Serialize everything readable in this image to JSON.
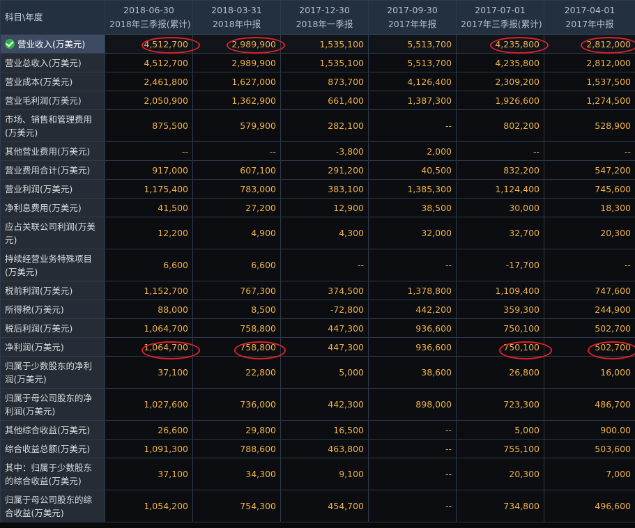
{
  "header": {
    "corner": "科目\\年度",
    "columns": [
      {
        "date": "2018-06-30",
        "report": "2018年三季报(累计)"
      },
      {
        "date": "2018-03-31",
        "report": "2018年中报"
      },
      {
        "date": "2017-12-30",
        "report": "2018年一季报"
      },
      {
        "date": "2017-09-30",
        "report": "2017年年报"
      },
      {
        "date": "2017-07-01",
        "report": "2017年三季报(累计)"
      },
      {
        "date": "2017-04-01",
        "report": "2017年中报"
      }
    ]
  },
  "rows": [
    {
      "label": "营业收入(万美元)",
      "values": [
        "4,512,700",
        "2,989,900",
        "1,535,100",
        "5,513,700",
        "4,235,800",
        "2,812,000"
      ]
    },
    {
      "label": "营业总收入(万美元)",
      "values": [
        "4,512,700",
        "2,989,900",
        "1,535,100",
        "5,513,700",
        "4,235,800",
        "2,812,000"
      ]
    },
    {
      "label": "营业成本(万美元)",
      "values": [
        "2,461,800",
        "1,627,000",
        "873,700",
        "4,126,400",
        "2,309,200",
        "1,537,500"
      ]
    },
    {
      "label": "营业毛利润(万美元)",
      "values": [
        "2,050,900",
        "1,362,900",
        "661,400",
        "1,387,300",
        "1,926,600",
        "1,274,500"
      ]
    },
    {
      "label": "市场、销售和管理费用(万美元)",
      "values": [
        "875,500",
        "579,900",
        "282,100",
        "--",
        "802,200",
        "528,900"
      ]
    },
    {
      "label": "其他营业费用(万美元)",
      "values": [
        "--",
        "--",
        "-3,800",
        "2,000",
        "--",
        "--"
      ]
    },
    {
      "label": "营业费用合计(万美元)",
      "values": [
        "917,000",
        "607,100",
        "291,200",
        "40,500",
        "832,200",
        "547,200"
      ]
    },
    {
      "label": "营业利润(万美元)",
      "values": [
        "1,175,400",
        "783,000",
        "383,100",
        "1,385,300",
        "1,124,400",
        "745,600"
      ]
    },
    {
      "label": "净利息费用(万美元)",
      "values": [
        "41,500",
        "27,200",
        "12,900",
        "38,500",
        "30,000",
        "18,300"
      ]
    },
    {
      "label": "应占关联公司利润(万美元)",
      "values": [
        "12,200",
        "4,900",
        "4,300",
        "32,000",
        "32,700",
        "20,300"
      ]
    },
    {
      "label": "持续经营业务特殊项目(万美元)",
      "values": [
        "6,600",
        "6,600",
        "--",
        "--",
        "-17,700",
        "--"
      ]
    },
    {
      "label": "税前利润(万美元)",
      "values": [
        "1,152,700",
        "767,300",
        "374,500",
        "1,378,800",
        "1,109,400",
        "747,600"
      ]
    },
    {
      "label": "所得税(万美元)",
      "values": [
        "88,000",
        "8,500",
        "-72,800",
        "442,200",
        "359,300",
        "244,900"
      ]
    },
    {
      "label": "税后利润(万美元)",
      "values": [
        "1,064,700",
        "758,800",
        "447,300",
        "936,600",
        "750,100",
        "502,700"
      ]
    },
    {
      "label": "净利润(万美元)",
      "values": [
        "1,064,700",
        "758,800",
        "447,300",
        "936,600",
        "750,100",
        "502,700"
      ]
    },
    {
      "label": "归属于少数股东的净利润(万美元)",
      "values": [
        "37,100",
        "22,800",
        "5,000",
        "38,600",
        "26,800",
        "16,000"
      ]
    },
    {
      "label": "归属于母公司股东的净利润(万美元)",
      "values": [
        "1,027,600",
        "736,000",
        "442,300",
        "898,000",
        "723,300",
        "486,700"
      ]
    },
    {
      "label": "其他综合收益(万美元)",
      "values": [
        "26,600",
        "29,800",
        "16,500",
        "--",
        "5,000",
        "900.00"
      ]
    },
    {
      "label": "综合收益总额(万美元)",
      "values": [
        "1,091,300",
        "788,600",
        "463,800",
        "--",
        "755,100",
        "503,600"
      ]
    },
    {
      "label": "其中：归属于少数股东的综合收益(万美元)",
      "values": [
        "37,100",
        "34,300",
        "9,100",
        "--",
        "20,300",
        "7,000"
      ]
    },
    {
      "label": "归属于母公司股东的综合收益(万美元)",
      "values": [
        "1,054,200",
        "754,300",
        "454,700",
        "--",
        "734,800",
        "496,600"
      ]
    }
  ],
  "highlight_color": "#e0202a",
  "value_color": "#f0b24a",
  "check_icon": "check-circle-icon"
}
